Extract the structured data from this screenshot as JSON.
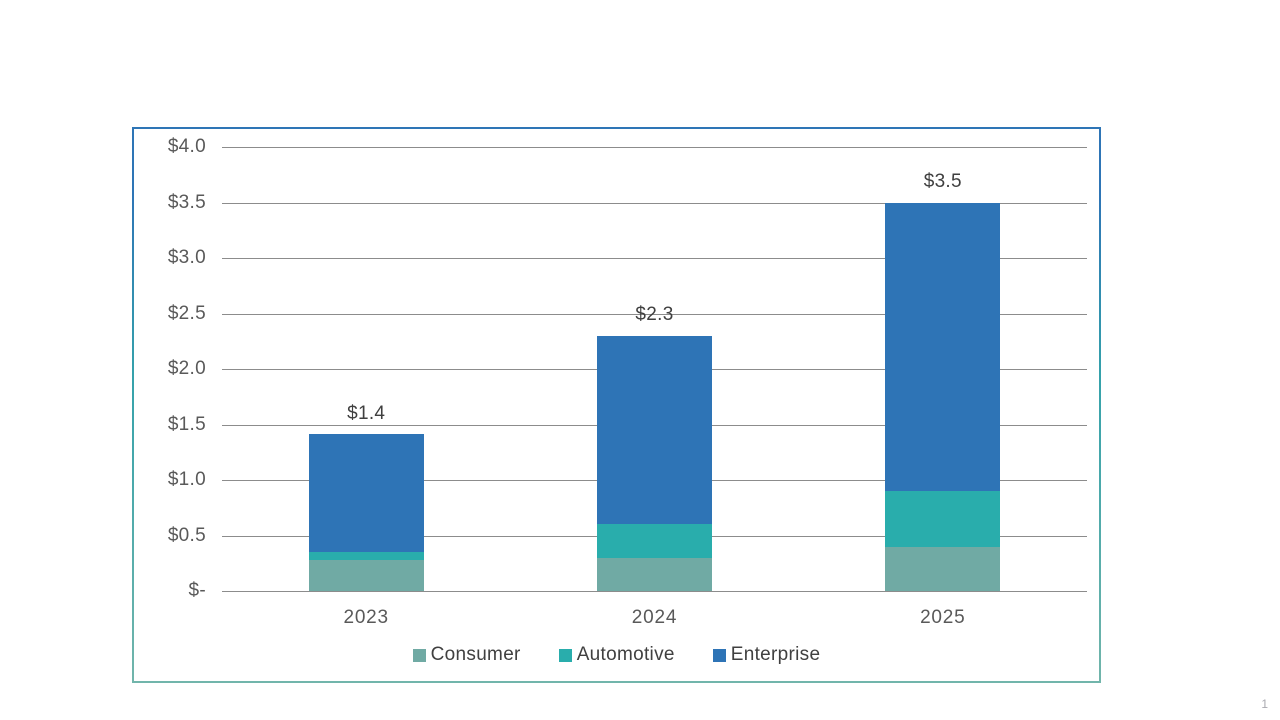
{
  "page": {
    "page_number": "1"
  },
  "colors": {
    "frame_border_top": "#2e75b6",
    "frame_border_mid": "#35a2ab",
    "frame_border_bottom": "#71b5ab",
    "gridline": "#8c8c8c",
    "axis_text": "#595959",
    "data_label_text": "#3f3f3f",
    "legend_text": "#404040",
    "page_number_text": "#a9a9b0"
  },
  "chart_data": {
    "type": "bar",
    "stacked": true,
    "title": "",
    "categories": [
      "2023",
      "2024",
      "2025"
    ],
    "series": [
      {
        "name": "Consumer",
        "color": "#70aaa4",
        "values": [
          0.28,
          0.3,
          0.4
        ]
      },
      {
        "name": "Automotive",
        "color": "#29adac",
        "values": [
          0.07,
          0.3,
          0.5
        ]
      },
      {
        "name": "Enterprise",
        "color": "#2e74b6",
        "values": [
          1.06,
          1.7,
          2.6
        ]
      }
    ],
    "totals": [
      1.41,
      2.3,
      3.5
    ],
    "total_labels": [
      "$1.4",
      "$2.3",
      "$3.5"
    ],
    "y_ticks": [
      "$4.0",
      "$3.5",
      "$3.0",
      "$2.5",
      "$2.0",
      "$1.5",
      "$1.0",
      "$0.5",
      "$-"
    ],
    "y_tick_values": [
      4.0,
      3.5,
      3.0,
      2.5,
      2.0,
      1.5,
      1.0,
      0.5,
      0
    ],
    "ylim": [
      0,
      4.0
    ],
    "grid": true,
    "legend_position": "bottom"
  }
}
